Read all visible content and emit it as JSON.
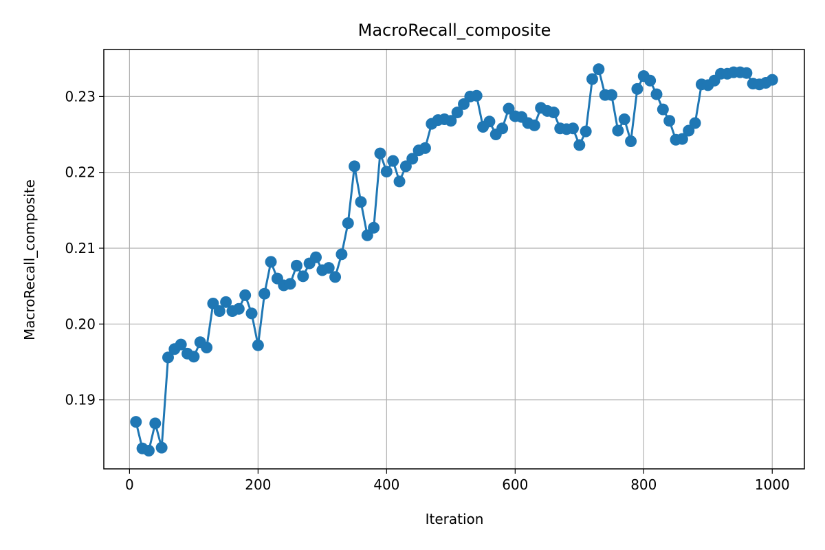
{
  "chart_data": {
    "type": "line",
    "title": "MacroRecall_composite",
    "xlabel": "Iteration",
    "ylabel": "MacroRecall_composite",
    "xlim": [
      -40,
      1050
    ],
    "ylim": [
      0.1809,
      0.2362
    ],
    "xticks": [
      0,
      200,
      400,
      600,
      800,
      1000
    ],
    "xtick_labels": [
      "0",
      "200",
      "400",
      "600",
      "800",
      "1000"
    ],
    "yticks": [
      0.19,
      0.2,
      0.21,
      0.22,
      0.23
    ],
    "ytick_labels": [
      "0.19",
      "0.20",
      "0.21",
      "0.22",
      "0.23"
    ],
    "grid": true,
    "marker": "circle",
    "color": "#1f77b4",
    "series": [
      {
        "x": [
          10,
          20,
          30,
          40,
          50,
          60,
          70,
          80,
          90,
          100,
          110,
          120,
          130,
          140,
          150,
          160,
          170,
          180,
          190,
          200,
          210,
          220,
          230,
          240,
          250,
          260,
          270,
          280,
          290,
          300,
          310,
          320,
          330,
          340,
          350,
          360,
          370,
          380,
          390,
          400,
          410,
          420,
          430,
          440,
          450,
          460,
          470,
          480,
          490,
          500,
          510,
          520,
          530,
          540,
          550,
          560,
          570,
          580,
          590,
          600,
          610,
          620,
          630,
          640,
          650,
          660,
          670,
          680,
          690,
          700,
          710,
          720,
          730,
          740,
          750,
          760,
          770,
          780,
          790,
          800,
          810,
          820,
          830,
          840,
          850,
          860,
          870,
          880,
          890,
          900,
          910,
          920,
          930,
          940,
          950,
          960,
          970,
          980,
          990,
          1000
        ],
        "y": [
          0.1871,
          0.1836,
          0.1833,
          0.1869,
          0.1837,
          0.1956,
          0.1967,
          0.1973,
          0.1961,
          0.1957,
          0.1976,
          0.1969,
          0.2027,
          0.2017,
          0.2029,
          0.2017,
          0.202,
          0.2038,
          0.2014,
          0.1972,
          0.204,
          0.2082,
          0.206,
          0.2051,
          0.2053,
          0.2077,
          0.2063,
          0.208,
          0.2088,
          0.2071,
          0.2074,
          0.2062,
          0.2092,
          0.2133,
          0.2208,
          0.2161,
          0.2117,
          0.2127,
          0.2225,
          0.2201,
          0.2215,
          0.2188,
          0.2208,
          0.2218,
          0.2229,
          0.2232,
          0.2264,
          0.2269,
          0.227,
          0.2268,
          0.2279,
          0.229,
          0.23,
          0.2301,
          0.226,
          0.2267,
          0.225,
          0.2258,
          0.2284,
          0.2274,
          0.2273,
          0.2265,
          0.2262,
          0.2285,
          0.2281,
          0.2279,
          0.2258,
          0.2257,
          0.2258,
          0.2236,
          0.2254,
          0.2323,
          0.2336,
          0.2302,
          0.2302,
          0.2255,
          0.227,
          0.2241,
          0.231,
          0.2327,
          0.2321,
          0.2303,
          0.2283,
          0.2268,
          0.2243,
          0.2244,
          0.2255,
          0.2265,
          0.2316,
          0.2315,
          0.2321,
          0.233,
          0.233,
          0.2332,
          0.2332,
          0.2331,
          0.2317,
          0.2316,
          0.2318,
          0.2322
        ]
      }
    ]
  }
}
